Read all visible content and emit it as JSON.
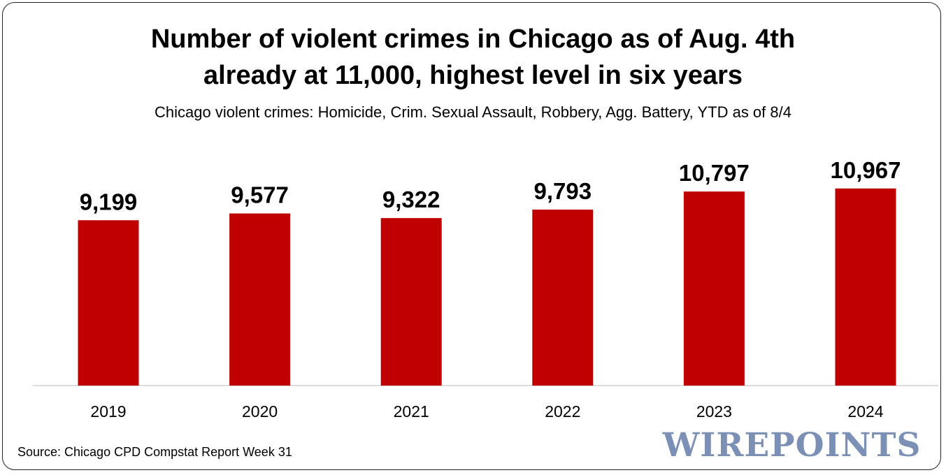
{
  "title_line1": "Number of violent crimes in Chicago as of Aug. 4th",
  "title_line2": "already at 11,000, highest level in six years",
  "subtitle": "Chicago violent crimes: Homicide, Crim. Sexual Assault, Robbery, Agg. Battery, YTD as of 8/4",
  "source": "Source: Chicago CPD Compstat Report Week 31",
  "logo": "WIREPOINTS",
  "colors": {
    "bar": "#c00000",
    "axis": "#d0d0d0",
    "logo": "#7b90b4"
  },
  "chart_data": {
    "type": "bar",
    "categories": [
      "2019",
      "2020",
      "2021",
      "2022",
      "2023",
      "2024"
    ],
    "values": [
      9199,
      9577,
      9322,
      9793,
      10797,
      10967
    ],
    "value_labels": [
      "9,199",
      "9,577",
      "9,322",
      "9,793",
      "10,797",
      "10,967"
    ],
    "title": "Number of violent crimes in Chicago as of Aug. 4th already at 11,000, highest level in six years",
    "xlabel": "",
    "ylabel": "",
    "ylim": [
      0,
      11000
    ],
    "grid": false,
    "legend": "none"
  }
}
